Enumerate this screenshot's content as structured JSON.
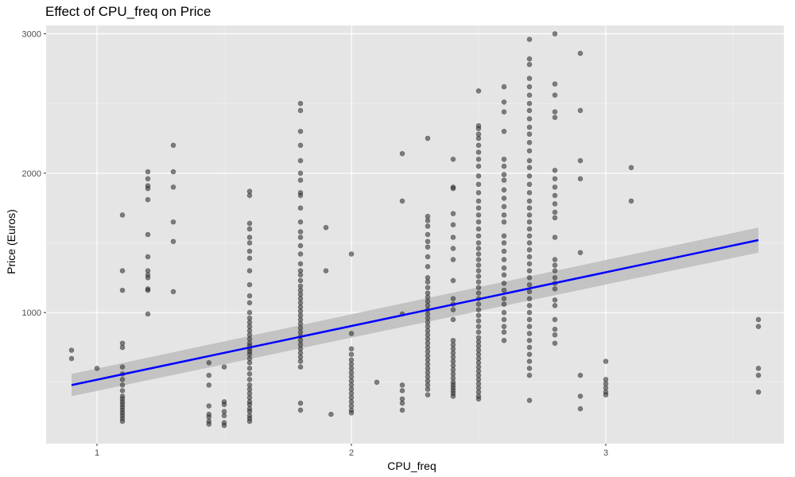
{
  "chart_data": {
    "type": "scatter",
    "title": "Effect of CPU_freq on Price",
    "xlabel": "CPU_freq",
    "ylabel": "Price (Euros)",
    "xlim": [
      0.8,
      3.7
    ],
    "ylim": [
      60,
      3060
    ],
    "x_ticks": [
      1,
      2,
      3
    ],
    "x_tick_labels": [
      "1",
      "2",
      "3"
    ],
    "y_ticks": [
      1000,
      2000,
      3000
    ],
    "y_tick_labels": [
      "1000",
      "2000",
      "3000"
    ],
    "x_minor": [
      1.5,
      2.5,
      3.5
    ],
    "y_minor": [
      500,
      1500,
      2500
    ],
    "grid": true,
    "background": "#e5e5e5",
    "point_color": "#333333",
    "point_opacity": 0.6,
    "fit_line": {
      "method": "linear",
      "color": "#0000ff",
      "x": [
        0.9,
        3.6
      ],
      "y": [
        480,
        1520
      ],
      "ci_lower": [
        400,
        1430
      ],
      "ci_upper": [
        560,
        1610
      ],
      "ci_color": "#bdbdbd"
    },
    "points": [
      [
        0.9,
        730
      ],
      [
        0.9,
        670
      ],
      [
        1.0,
        600
      ],
      [
        1.1,
        1700
      ],
      [
        1.1,
        1300
      ],
      [
        1.1,
        1160
      ],
      [
        1.1,
        780
      ],
      [
        1.1,
        750
      ],
      [
        1.1,
        610
      ],
      [
        1.1,
        560
      ],
      [
        1.1,
        520
      ],
      [
        1.1,
        480
      ],
      [
        1.1,
        440
      ],
      [
        1.1,
        400
      ],
      [
        1.1,
        380
      ],
      [
        1.1,
        360
      ],
      [
        1.1,
        340
      ],
      [
        1.1,
        320
      ],
      [
        1.1,
        300
      ],
      [
        1.1,
        280
      ],
      [
        1.1,
        260
      ],
      [
        1.1,
        240
      ],
      [
        1.1,
        220
      ],
      [
        1.2,
        2010
      ],
      [
        1.2,
        1960
      ],
      [
        1.2,
        1910
      ],
      [
        1.2,
        1890
      ],
      [
        1.2,
        1810
      ],
      [
        1.2,
        1560
      ],
      [
        1.2,
        1400
      ],
      [
        1.2,
        1300
      ],
      [
        1.2,
        1270
      ],
      [
        1.2,
        1250
      ],
      [
        1.2,
        1170
      ],
      [
        1.2,
        1160
      ],
      [
        1.2,
        990
      ],
      [
        1.3,
        2200
      ],
      [
        1.3,
        2010
      ],
      [
        1.3,
        1900
      ],
      [
        1.3,
        1650
      ],
      [
        1.3,
        1510
      ],
      [
        1.3,
        1150
      ],
      [
        1.44,
        640
      ],
      [
        1.44,
        550
      ],
      [
        1.44,
        480
      ],
      [
        1.44,
        330
      ],
      [
        1.44,
        270
      ],
      [
        1.44,
        250
      ],
      [
        1.44,
        220
      ],
      [
        1.44,
        200
      ],
      [
        1.5,
        610
      ],
      [
        1.5,
        360
      ],
      [
        1.5,
        340
      ],
      [
        1.5,
        290
      ],
      [
        1.5,
        260
      ],
      [
        1.5,
        210
      ],
      [
        1.5,
        190
      ],
      [
        1.6,
        1870
      ],
      [
        1.6,
        1840
      ],
      [
        1.6,
        1640
      ],
      [
        1.6,
        1600
      ],
      [
        1.6,
        1540
      ],
      [
        1.6,
        1500
      ],
      [
        1.6,
        1440
      ],
      [
        1.6,
        1390
      ],
      [
        1.6,
        1300
      ],
      [
        1.6,
        1200
      ],
      [
        1.6,
        1120
      ],
      [
        1.6,
        1070
      ],
      [
        1.6,
        1000
      ],
      [
        1.6,
        960
      ],
      [
        1.6,
        930
      ],
      [
        1.6,
        900
      ],
      [
        1.6,
        870
      ],
      [
        1.6,
        840
      ],
      [
        1.6,
        810
      ],
      [
        1.6,
        780
      ],
      [
        1.6,
        760
      ],
      [
        1.6,
        740
      ],
      [
        1.6,
        720
      ],
      [
        1.6,
        700
      ],
      [
        1.6,
        670
      ],
      [
        1.6,
        640
      ],
      [
        1.6,
        600
      ],
      [
        1.6,
        560
      ],
      [
        1.6,
        520
      ],
      [
        1.6,
        480
      ],
      [
        1.6,
        450
      ],
      [
        1.6,
        420
      ],
      [
        1.6,
        390
      ],
      [
        1.6,
        360
      ],
      [
        1.6,
        340
      ],
      [
        1.6,
        310
      ],
      [
        1.6,
        290
      ],
      [
        1.6,
        260
      ],
      [
        1.6,
        240
      ],
      [
        1.6,
        220
      ],
      [
        1.8,
        2500
      ],
      [
        1.8,
        2450
      ],
      [
        1.8,
        2300
      ],
      [
        1.8,
        2200
      ],
      [
        1.8,
        2090
      ],
      [
        1.8,
        2000
      ],
      [
        1.8,
        1950
      ],
      [
        1.8,
        1860
      ],
      [
        1.8,
        1840
      ],
      [
        1.8,
        1750
      ],
      [
        1.8,
        1650
      ],
      [
        1.8,
        1580
      ],
      [
        1.8,
        1540
      ],
      [
        1.8,
        1480
      ],
      [
        1.8,
        1420
      ],
      [
        1.8,
        1350
      ],
      [
        1.8,
        1300
      ],
      [
        1.8,
        1270
      ],
      [
        1.8,
        1230
      ],
      [
        1.8,
        1190
      ],
      [
        1.8,
        1160
      ],
      [
        1.8,
        1130
      ],
      [
        1.8,
        1100
      ],
      [
        1.8,
        1070
      ],
      [
        1.8,
        1040
      ],
      [
        1.8,
        1010
      ],
      [
        1.8,
        980
      ],
      [
        1.8,
        950
      ],
      [
        1.8,
        920
      ],
      [
        1.8,
        890
      ],
      [
        1.8,
        860
      ],
      [
        1.8,
        830
      ],
      [
        1.8,
        800
      ],
      [
        1.8,
        770
      ],
      [
        1.8,
        740
      ],
      [
        1.8,
        710
      ],
      [
        1.8,
        680
      ],
      [
        1.8,
        650
      ],
      [
        1.8,
        610
      ],
      [
        1.8,
        350
      ],
      [
        1.8,
        300
      ],
      [
        1.9,
        1610
      ],
      [
        1.9,
        1300
      ],
      [
        1.92,
        270
      ],
      [
        2.0,
        1420
      ],
      [
        2.0,
        850
      ],
      [
        2.0,
        740
      ],
      [
        2.0,
        700
      ],
      [
        2.0,
        660
      ],
      [
        2.0,
        630
      ],
      [
        2.0,
        600
      ],
      [
        2.0,
        570
      ],
      [
        2.0,
        540
      ],
      [
        2.0,
        510
      ],
      [
        2.0,
        480
      ],
      [
        2.0,
        450
      ],
      [
        2.0,
        420
      ],
      [
        2.0,
        390
      ],
      [
        2.0,
        360
      ],
      [
        2.0,
        330
      ],
      [
        2.0,
        300
      ],
      [
        2.0,
        280
      ],
      [
        2.1,
        500
      ],
      [
        2.2,
        2140
      ],
      [
        2.2,
        1800
      ],
      [
        2.2,
        990
      ],
      [
        2.2,
        480
      ],
      [
        2.2,
        440
      ],
      [
        2.2,
        380
      ],
      [
        2.2,
        350
      ],
      [
        2.2,
        300
      ],
      [
        2.3,
        2250
      ],
      [
        2.3,
        1690
      ],
      [
        2.3,
        1660
      ],
      [
        2.3,
        1620
      ],
      [
        2.3,
        1560
      ],
      [
        2.3,
        1510
      ],
      [
        2.3,
        1470
      ],
      [
        2.3,
        1400
      ],
      [
        2.3,
        1330
      ],
      [
        2.3,
        1250
      ],
      [
        2.3,
        1220
      ],
      [
        2.3,
        1180
      ],
      [
        2.3,
        1140
      ],
      [
        2.3,
        1110
      ],
      [
        2.3,
        1080
      ],
      [
        2.3,
        1050
      ],
      [
        2.3,
        1020
      ],
      [
        2.3,
        990
      ],
      [
        2.3,
        960
      ],
      [
        2.3,
        930
      ],
      [
        2.3,
        900
      ],
      [
        2.3,
        870
      ],
      [
        2.3,
        840
      ],
      [
        2.3,
        810
      ],
      [
        2.3,
        780
      ],
      [
        2.3,
        750
      ],
      [
        2.3,
        720
      ],
      [
        2.3,
        690
      ],
      [
        2.3,
        660
      ],
      [
        2.3,
        630
      ],
      [
        2.3,
        600
      ],
      [
        2.3,
        570
      ],
      [
        2.3,
        540
      ],
      [
        2.3,
        510
      ],
      [
        2.3,
        480
      ],
      [
        2.3,
        450
      ],
      [
        2.3,
        410
      ],
      [
        2.4,
        2100
      ],
      [
        2.4,
        1900
      ],
      [
        2.4,
        1890
      ],
      [
        2.4,
        1710
      ],
      [
        2.4,
        1630
      ],
      [
        2.4,
        1540
      ],
      [
        2.4,
        1460
      ],
      [
        2.4,
        1380
      ],
      [
        2.4,
        1230
      ],
      [
        2.4,
        1100
      ],
      [
        2.4,
        1060
      ],
      [
        2.4,
        1020
      ],
      [
        2.4,
        950
      ],
      [
        2.4,
        800
      ],
      [
        2.4,
        770
      ],
      [
        2.4,
        740
      ],
      [
        2.4,
        710
      ],
      [
        2.4,
        680
      ],
      [
        2.4,
        650
      ],
      [
        2.4,
        620
      ],
      [
        2.4,
        590
      ],
      [
        2.4,
        560
      ],
      [
        2.4,
        530
      ],
      [
        2.4,
        500
      ],
      [
        2.4,
        480
      ],
      [
        2.4,
        460
      ],
      [
        2.4,
        440
      ],
      [
        2.4,
        420
      ],
      [
        2.4,
        400
      ],
      [
        2.5,
        2590
      ],
      [
        2.5,
        2340
      ],
      [
        2.5,
        2320
      ],
      [
        2.5,
        2280
      ],
      [
        2.5,
        2250
      ],
      [
        2.5,
        2200
      ],
      [
        2.5,
        2150
      ],
      [
        2.5,
        2100
      ],
      [
        2.5,
        2050
      ],
      [
        2.5,
        1980
      ],
      [
        2.5,
        1920
      ],
      [
        2.5,
        1860
      ],
      [
        2.5,
        1800
      ],
      [
        2.5,
        1750
      ],
      [
        2.5,
        1700
      ],
      [
        2.5,
        1650
      ],
      [
        2.5,
        1600
      ],
      [
        2.5,
        1550
      ],
      [
        2.5,
        1500
      ],
      [
        2.5,
        1460
      ],
      [
        2.5,
        1420
      ],
      [
        2.5,
        1380
      ],
      [
        2.5,
        1340
      ],
      [
        2.5,
        1300
      ],
      [
        2.5,
        1260
      ],
      [
        2.5,
        1220
      ],
      [
        2.5,
        1180
      ],
      [
        2.5,
        1140
      ],
      [
        2.5,
        1100
      ],
      [
        2.5,
        1060
      ],
      [
        2.5,
        1020
      ],
      [
        2.5,
        980
      ],
      [
        2.5,
        940
      ],
      [
        2.5,
        900
      ],
      [
        2.5,
        860
      ],
      [
        2.5,
        820
      ],
      [
        2.5,
        790
      ],
      [
        2.5,
        760
      ],
      [
        2.5,
        730
      ],
      [
        2.5,
        700
      ],
      [
        2.5,
        670
      ],
      [
        2.5,
        640
      ],
      [
        2.5,
        610
      ],
      [
        2.5,
        580
      ],
      [
        2.5,
        550
      ],
      [
        2.5,
        520
      ],
      [
        2.5,
        490
      ],
      [
        2.5,
        460
      ],
      [
        2.5,
        430
      ],
      [
        2.5,
        400
      ],
      [
        2.5,
        380
      ],
      [
        2.6,
        2620
      ],
      [
        2.6,
        2510
      ],
      [
        2.6,
        2440
      ],
      [
        2.6,
        2300
      ],
      [
        2.6,
        2100
      ],
      [
        2.6,
        2050
      ],
      [
        2.6,
        1990
      ],
      [
        2.6,
        1950
      ],
      [
        2.6,
        1880
      ],
      [
        2.6,
        1820
      ],
      [
        2.6,
        1760
      ],
      [
        2.6,
        1700
      ],
      [
        2.6,
        1650
      ],
      [
        2.6,
        1550
      ],
      [
        2.6,
        1500
      ],
      [
        2.6,
        1440
      ],
      [
        2.6,
        1380
      ],
      [
        2.6,
        1320
      ],
      [
        2.6,
        1270
      ],
      [
        2.6,
        1210
      ],
      [
        2.6,
        1160
      ],
      [
        2.6,
        1100
      ],
      [
        2.6,
        1060
      ],
      [
        2.6,
        1000
      ],
      [
        2.6,
        950
      ],
      [
        2.6,
        900
      ],
      [
        2.6,
        860
      ],
      [
        2.6,
        800
      ],
      [
        2.7,
        2960
      ],
      [
        2.7,
        2820
      ],
      [
        2.7,
        2780
      ],
      [
        2.7,
        2680
      ],
      [
        2.7,
        2620
      ],
      [
        2.7,
        2560
      ],
      [
        2.7,
        2500
      ],
      [
        2.7,
        2450
      ],
      [
        2.7,
        2390
      ],
      [
        2.7,
        2330
      ],
      [
        2.7,
        2280
      ],
      [
        2.7,
        2220
      ],
      [
        2.7,
        2160
      ],
      [
        2.7,
        2090
      ],
      [
        2.7,
        2040
      ],
      [
        2.7,
        1980
      ],
      [
        2.7,
        1920
      ],
      [
        2.7,
        1860
      ],
      [
        2.7,
        1800
      ],
      [
        2.7,
        1750
      ],
      [
        2.7,
        1700
      ],
      [
        2.7,
        1650
      ],
      [
        2.7,
        1600
      ],
      [
        2.7,
        1550
      ],
      [
        2.7,
        1500
      ],
      [
        2.7,
        1450
      ],
      [
        2.7,
        1400
      ],
      [
        2.7,
        1350
      ],
      [
        2.7,
        1300
      ],
      [
        2.7,
        1250
      ],
      [
        2.7,
        1200
      ],
      [
        2.7,
        1150
      ],
      [
        2.7,
        1100
      ],
      [
        2.7,
        1050
      ],
      [
        2.7,
        1000
      ],
      [
        2.7,
        950
      ],
      [
        2.7,
        900
      ],
      [
        2.7,
        850
      ],
      [
        2.7,
        800
      ],
      [
        2.7,
        750
      ],
      [
        2.7,
        700
      ],
      [
        2.7,
        650
      ],
      [
        2.7,
        600
      ],
      [
        2.7,
        550
      ],
      [
        2.7,
        370
      ],
      [
        2.8,
        3000
      ],
      [
        2.8,
        2640
      ],
      [
        2.8,
        2560
      ],
      [
        2.8,
        2440
      ],
      [
        2.8,
        2400
      ],
      [
        2.8,
        2020
      ],
      [
        2.8,
        1960
      ],
      [
        2.8,
        1900
      ],
      [
        2.8,
        1840
      ],
      [
        2.8,
        1780
      ],
      [
        2.8,
        1720
      ],
      [
        2.8,
        1680
      ],
      [
        2.8,
        1540
      ],
      [
        2.8,
        1380
      ],
      [
        2.8,
        1340
      ],
      [
        2.8,
        1300
      ],
      [
        2.8,
        1250
      ],
      [
        2.8,
        1210
      ],
      [
        2.8,
        1170
      ],
      [
        2.8,
        1090
      ],
      [
        2.8,
        1050
      ],
      [
        2.8,
        950
      ],
      [
        2.8,
        880
      ],
      [
        2.8,
        840
      ],
      [
        2.8,
        780
      ],
      [
        2.9,
        2860
      ],
      [
        2.9,
        2450
      ],
      [
        2.9,
        2090
      ],
      [
        2.9,
        1960
      ],
      [
        2.9,
        1430
      ],
      [
        2.9,
        550
      ],
      [
        2.9,
        400
      ],
      [
        2.9,
        310
      ],
      [
        3.0,
        650
      ],
      [
        3.0,
        520
      ],
      [
        3.0,
        490
      ],
      [
        3.0,
        460
      ],
      [
        3.0,
        430
      ],
      [
        3.0,
        410
      ],
      [
        3.1,
        2040
      ],
      [
        3.1,
        1800
      ],
      [
        3.6,
        950
      ],
      [
        3.6,
        900
      ],
      [
        3.6,
        600
      ],
      [
        3.6,
        550
      ],
      [
        3.6,
        430
      ]
    ]
  }
}
